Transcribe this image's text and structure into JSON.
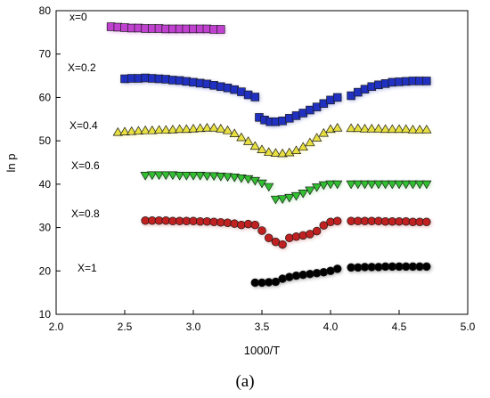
{
  "chart_data": {
    "type": "scatter",
    "title": "",
    "xlabel": "1000/T",
    "ylabel": "ln p",
    "xlim": [
      2.0,
      5.0
    ],
    "ylim": [
      10,
      80
    ],
    "x_ticks": [
      "2.0",
      "2.5",
      "3.0",
      "3.5",
      "4.0",
      "4.5",
      "5.0"
    ],
    "y_ticks": [
      "10",
      "20",
      "30",
      "40",
      "50",
      "60",
      "70",
      "80"
    ],
    "grid": false,
    "legend": "inline labels",
    "series": [
      {
        "name": "x=0",
        "marker": "square",
        "color": "#c040d0",
        "x": [
          2.4,
          2.45,
          2.5,
          2.55,
          2.6,
          2.65,
          2.7,
          2.75,
          2.8,
          2.85,
          2.9,
          2.95,
          3.0,
          3.05,
          3.1,
          3.15,
          3.2
        ],
        "y": [
          76.3,
          76.2,
          76.1,
          76.0,
          76.0,
          75.9,
          75.9,
          75.9,
          75.8,
          75.8,
          75.8,
          75.8,
          75.8,
          75.8,
          75.8,
          75.7,
          75.7
        ]
      },
      {
        "name": "X=0.2",
        "marker": "square",
        "color": "#2030c0",
        "x": [
          2.5,
          2.55,
          2.6,
          2.65,
          2.7,
          2.75,
          2.8,
          2.85,
          2.9,
          2.95,
          3.0,
          3.05,
          3.1,
          3.15,
          3.2,
          3.25,
          3.3,
          3.35,
          3.4,
          3.45,
          3.48,
          3.52,
          3.56,
          3.6,
          3.65,
          3.7,
          3.75,
          3.8,
          3.85,
          3.9,
          3.95,
          4.0,
          4.05,
          4.15,
          4.2,
          4.25,
          4.3,
          4.35,
          4.4,
          4.45,
          4.5,
          4.55,
          4.6,
          4.65,
          4.7
        ],
        "y": [
          64.3,
          64.4,
          64.4,
          64.5,
          64.4,
          64.3,
          64.2,
          64.0,
          63.9,
          63.7,
          63.5,
          63.3,
          63.1,
          62.8,
          62.5,
          62.2,
          61.8,
          61.3,
          60.6,
          60.1,
          55.4,
          54.8,
          54.4,
          54.4,
          54.6,
          55.2,
          55.8,
          56.4,
          57.1,
          57.8,
          58.6,
          59.4,
          60.0,
          60.4,
          61.2,
          61.9,
          62.5,
          62.9,
          63.2,
          63.5,
          63.6,
          63.7,
          63.8,
          63.8,
          63.8
        ]
      },
      {
        "name": "X=0.4",
        "marker": "triangle-up",
        "color": "#e8e040",
        "x": [
          2.45,
          2.5,
          2.55,
          2.6,
          2.65,
          2.7,
          2.75,
          2.8,
          2.85,
          2.9,
          2.95,
          3.0,
          3.05,
          3.1,
          3.15,
          3.2,
          3.25,
          3.3,
          3.35,
          3.4,
          3.45,
          3.5,
          3.55,
          3.6,
          3.65,
          3.7,
          3.75,
          3.8,
          3.85,
          3.9,
          3.95,
          4.0,
          4.05,
          4.15,
          4.2,
          4.25,
          4.3,
          4.35,
          4.4,
          4.45,
          4.5,
          4.55,
          4.6,
          4.65,
          4.7
        ],
        "y": [
          52.0,
          52.1,
          52.2,
          52.3,
          52.4,
          52.4,
          52.5,
          52.5,
          52.6,
          52.7,
          52.7,
          52.8,
          52.9,
          53.0,
          53.0,
          52.8,
          52.4,
          51.7,
          50.8,
          49.9,
          48.8,
          48.0,
          47.4,
          47.2,
          47.1,
          47.3,
          47.8,
          48.6,
          49.6,
          50.7,
          51.8,
          52.7,
          53.0,
          52.9,
          52.9,
          52.8,
          52.8,
          52.8,
          52.7,
          52.7,
          52.7,
          52.7,
          52.6,
          52.6,
          52.6
        ]
      },
      {
        "name": "X=0.6",
        "marker": "triangle-down",
        "color": "#30c030",
        "x": [
          2.65,
          2.7,
          2.75,
          2.8,
          2.85,
          2.9,
          2.95,
          3.0,
          3.05,
          3.1,
          3.15,
          3.2,
          3.25,
          3.3,
          3.35,
          3.4,
          3.45,
          3.5,
          3.55,
          3.6,
          3.65,
          3.7,
          3.75,
          3.8,
          3.85,
          3.9,
          3.95,
          4.0,
          4.05,
          4.15,
          4.2,
          4.25,
          4.3,
          4.35,
          4.4,
          4.45,
          4.5,
          4.55,
          4.6,
          4.65,
          4.7
        ],
        "y": [
          42.0,
          42.1,
          42.1,
          42.1,
          42.1,
          42.0,
          42.0,
          42.0,
          42.0,
          41.9,
          41.9,
          41.8,
          41.7,
          41.6,
          41.4,
          41.2,
          40.8,
          40.2,
          39.4,
          36.5,
          36.6,
          36.9,
          37.3,
          37.9,
          38.6,
          39.3,
          39.8,
          40.0,
          40.0,
          40.0,
          40.0,
          40.0,
          40.0,
          40.0,
          40.0,
          40.0,
          40.0,
          40.0,
          40.0,
          40.0,
          40.0
        ]
      },
      {
        "name": "X=0.8",
        "marker": "circle",
        "color": "#c02020",
        "x": [
          2.65,
          2.7,
          2.75,
          2.8,
          2.85,
          2.9,
          2.95,
          3.0,
          3.05,
          3.1,
          3.15,
          3.2,
          3.25,
          3.3,
          3.35,
          3.4,
          3.45,
          3.5,
          3.55,
          3.6,
          3.65,
          3.7,
          3.75,
          3.8,
          3.85,
          3.9,
          3.95,
          4.0,
          4.05,
          4.15,
          4.2,
          4.25,
          4.3,
          4.35,
          4.4,
          4.45,
          4.5,
          4.55,
          4.6,
          4.65,
          4.7
        ],
        "y": [
          31.6,
          31.6,
          31.6,
          31.6,
          31.5,
          31.5,
          31.5,
          31.5,
          31.4,
          31.4,
          31.3,
          31.2,
          31.1,
          30.9,
          30.6,
          30.8,
          30.6,
          29.3,
          27.6,
          26.7,
          26.1,
          27.6,
          27.9,
          28.2,
          28.5,
          29.2,
          30.5,
          31.3,
          31.5,
          31.5,
          31.5,
          31.5,
          31.5,
          31.5,
          31.4,
          31.4,
          31.4,
          31.4,
          31.3,
          31.3,
          31.3
        ]
      },
      {
        "name": "X=1",
        "marker": "circle",
        "color": "#000000",
        "x": [
          3.45,
          3.5,
          3.55,
          3.6,
          3.65,
          3.7,
          3.75,
          3.8,
          3.85,
          3.9,
          3.95,
          4.0,
          4.05,
          4.15,
          4.2,
          4.25,
          4.3,
          4.35,
          4.4,
          4.45,
          4.5,
          4.55,
          4.6,
          4.65,
          4.7
        ],
        "y": [
          17.3,
          17.3,
          17.4,
          17.5,
          18.2,
          18.6,
          18.9,
          19.1,
          19.3,
          19.5,
          19.7,
          20.0,
          20.5,
          20.8,
          20.8,
          20.9,
          20.9,
          20.9,
          21.0,
          21.0,
          21.0,
          21.0,
          21.0,
          21.0,
          21.0
        ]
      }
    ],
    "caption": "(a)"
  }
}
